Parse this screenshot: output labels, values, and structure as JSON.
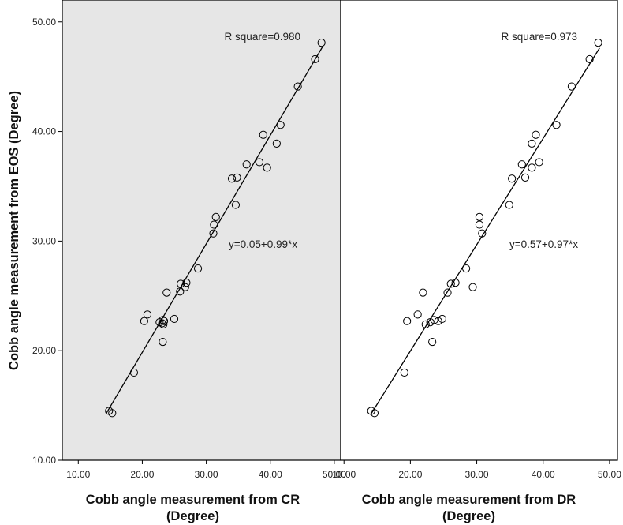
{
  "chart_data": {
    "type": "scatter",
    "ylabel": "Cobb angle measurement from EOS (Degree)",
    "ylim": [
      10,
      52
    ],
    "yticks": [
      "10.00",
      "20.00",
      "30.00",
      "40.00",
      "50.00"
    ],
    "yticks_values": [
      10,
      20,
      30,
      40,
      50
    ],
    "panels": [
      {
        "xlabel_line1": "Cobb angle measurement from CR",
        "xlabel_line2": "(Degree)",
        "xlim": [
          7.5,
          51
        ],
        "xticks": [
          "10.00",
          "20.00",
          "30.00",
          "40.00",
          "50.00"
        ],
        "xticks_values": [
          10,
          20,
          30,
          40,
          50
        ],
        "background": "#e6e6e6",
        "r_square": "R square=0.980",
        "equation": "y=0.05+0.99*x",
        "fit": {
          "intercept": 0.05,
          "slope": 0.99,
          "x_range": [
            14.3,
            48.3
          ]
        },
        "points": [
          [
            14.8,
            14.5
          ],
          [
            15.3,
            14.3
          ],
          [
            18.7,
            18.0
          ],
          [
            20.3,
            22.7
          ],
          [
            20.8,
            23.3
          ],
          [
            22.7,
            22.6
          ],
          [
            23.1,
            22.5
          ],
          [
            23.2,
            22.8
          ],
          [
            23.3,
            22.4
          ],
          [
            23.4,
            22.7
          ],
          [
            23.2,
            20.8
          ],
          [
            23.8,
            25.3
          ],
          [
            25.0,
            22.9
          ],
          [
            25.9,
            25.4
          ],
          [
            26.0,
            26.1
          ],
          [
            26.7,
            25.8
          ],
          [
            26.9,
            26.2
          ],
          [
            28.7,
            27.5
          ],
          [
            31.1,
            30.7
          ],
          [
            31.2,
            31.5
          ],
          [
            31.5,
            32.2
          ],
          [
            34.0,
            35.7
          ],
          [
            34.6,
            33.3
          ],
          [
            34.8,
            35.8
          ],
          [
            36.3,
            37.0
          ],
          [
            38.3,
            37.2
          ],
          [
            38.9,
            39.7
          ],
          [
            39.5,
            36.7
          ],
          [
            41.0,
            38.9
          ],
          [
            41.6,
            40.6
          ],
          [
            44.3,
            44.1
          ],
          [
            47.0,
            46.6
          ],
          [
            48.0,
            48.1
          ]
        ]
      },
      {
        "xlabel_line1": "Cobb angle measurement from DR",
        "xlabel_line2": "(Degree)",
        "xlim": [
          9.5,
          51.2
        ],
        "xticks": [
          "10.00",
          "20.00",
          "30.00",
          "40.00",
          "50.00"
        ],
        "xticks_values": [
          10,
          20,
          30,
          40,
          50
        ],
        "background": "#ffffff",
        "r_square": "R square=0.973",
        "equation": "y=0.57+0.97*x",
        "fit": {
          "intercept": 0.57,
          "slope": 0.97,
          "x_range": [
            14.0,
            48.5
          ]
        },
        "points": [
          [
            14.1,
            14.5
          ],
          [
            14.6,
            14.3
          ],
          [
            19.1,
            18.0
          ],
          [
            19.5,
            22.7
          ],
          [
            21.1,
            23.3
          ],
          [
            21.9,
            25.3
          ],
          [
            22.3,
            22.4
          ],
          [
            23.0,
            22.6
          ],
          [
            23.6,
            22.8
          ],
          [
            24.2,
            22.7
          ],
          [
            24.8,
            22.9
          ],
          [
            23.3,
            20.8
          ],
          [
            25.6,
            25.3
          ],
          [
            26.1,
            26.1
          ],
          [
            26.8,
            26.2
          ],
          [
            28.4,
            27.5
          ],
          [
            29.4,
            25.8
          ],
          [
            30.4,
            31.5
          ],
          [
            30.4,
            32.2
          ],
          [
            30.8,
            30.7
          ],
          [
            34.9,
            33.3
          ],
          [
            35.3,
            35.7
          ],
          [
            36.8,
            37.0
          ],
          [
            37.3,
            35.8
          ],
          [
            38.3,
            36.7
          ],
          [
            38.3,
            38.9
          ],
          [
            38.9,
            39.7
          ],
          [
            39.4,
            37.2
          ],
          [
            42.0,
            40.6
          ],
          [
            44.3,
            44.1
          ],
          [
            47.0,
            46.6
          ],
          [
            48.3,
            48.1
          ]
        ]
      }
    ]
  }
}
